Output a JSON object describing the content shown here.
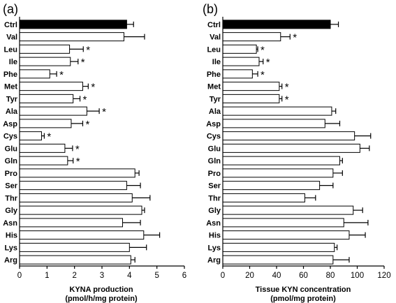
{
  "chart_data": [
    {
      "type": "bar",
      "orientation": "horizontal",
      "panel_label": "(a)",
      "title": "",
      "categories": [
        "Ctrl",
        "Val",
        "Leu",
        "Ile",
        "Phe",
        "Met",
        "Tyr",
        "Ala",
        "Asp",
        "Cys",
        "Glu",
        "Gln",
        "Pro",
        "Ser",
        "Thr",
        "Gly",
        "Asn",
        "His",
        "Lys",
        "Arg"
      ],
      "values": [
        3.9,
        3.8,
        1.82,
        1.85,
        1.1,
        2.3,
        1.95,
        2.45,
        1.88,
        0.8,
        1.65,
        1.75,
        4.2,
        3.9,
        4.1,
        4.45,
        3.75,
        4.52,
        4.0,
        4.05
      ],
      "errors": [
        0.25,
        0.75,
        0.5,
        0.28,
        0.25,
        0.2,
        0.25,
        0.45,
        0.42,
        0.1,
        0.28,
        0.2,
        0.15,
        0.5,
        0.65,
        0.1,
        0.65,
        0.58,
        0.62,
        0.15
      ],
      "significant": [
        false,
        false,
        true,
        true,
        true,
        true,
        true,
        true,
        true,
        true,
        true,
        true,
        false,
        false,
        false,
        false,
        false,
        false,
        false,
        false
      ],
      "significance_mark": "*",
      "highlight_colors": [
        "#000000",
        "#ffffff",
        "#ffffff",
        "#ffffff",
        "#ffffff",
        "#ffffff",
        "#ffffff",
        "#ffffff",
        "#ffffff",
        "#ffffff",
        "#ffffff",
        "#ffffff",
        "#ffffff",
        "#ffffff",
        "#ffffff",
        "#ffffff",
        "#ffffff",
        "#ffffff",
        "#ffffff",
        "#ffffff"
      ],
      "xlim": [
        0,
        6
      ],
      "xticks": [
        "0",
        "1",
        "2",
        "3",
        "4",
        "5",
        "6"
      ],
      "xlabel_line1": "KYNA production",
      "xlabel_line2": "(pmol/h/mg protein)"
    },
    {
      "type": "bar",
      "orientation": "horizontal",
      "panel_label": "(b)",
      "title": "",
      "categories": [
        "Ctrl",
        "Val",
        "Leu",
        "Ile",
        "Phe",
        "Met",
        "Tyr",
        "Ala",
        "Asp",
        "Cys",
        "Glu",
        "Gln",
        "Pro",
        "Ser",
        "Thr",
        "Gly",
        "Asn",
        "His",
        "Lys",
        "Arg"
      ],
      "values": [
        80,
        43,
        25,
        27,
        22,
        42,
        42,
        81,
        76,
        98,
        102,
        87,
        82,
        72,
        61,
        97,
        90,
        94,
        83,
        82
      ],
      "errors": [
        6,
        7,
        1,
        3,
        4,
        2,
        2,
        3,
        11,
        12,
        7,
        2,
        7,
        10,
        8,
        7,
        18,
        12,
        2,
        12
      ],
      "significant": [
        false,
        true,
        true,
        true,
        true,
        true,
        true,
        false,
        false,
        false,
        false,
        false,
        false,
        false,
        false,
        false,
        false,
        false,
        false,
        false
      ],
      "significance_mark": "*",
      "highlight_colors": [
        "#000000",
        "#ffffff",
        "#ffffff",
        "#ffffff",
        "#ffffff",
        "#ffffff",
        "#ffffff",
        "#ffffff",
        "#ffffff",
        "#ffffff",
        "#ffffff",
        "#ffffff",
        "#ffffff",
        "#ffffff",
        "#ffffff",
        "#ffffff",
        "#ffffff",
        "#ffffff",
        "#ffffff",
        "#ffffff"
      ],
      "xlim": [
        0,
        120
      ],
      "xticks": [
        "0",
        "20",
        "40",
        "60",
        "80",
        "100",
        "120"
      ],
      "xlabel_line1": "Tissue KYN concentration",
      "xlabel_line2": "(pmol/mg protein)"
    }
  ]
}
